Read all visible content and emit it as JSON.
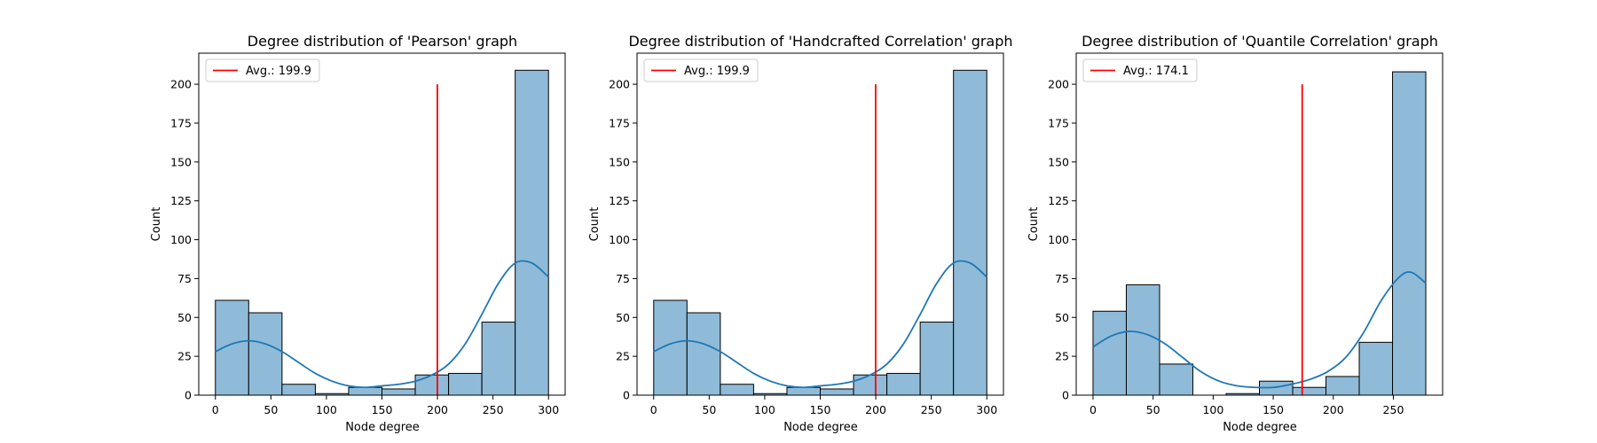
{
  "chart_data": [
    {
      "type": "bar",
      "title": "Degree distribution of 'Pearson' graph",
      "xlabel": "Node degree",
      "ylabel": "Count",
      "xlim": [
        -15,
        315
      ],
      "ylim": [
        0,
        220
      ],
      "xticks": [
        0,
        50,
        100,
        150,
        200,
        250,
        300
      ],
      "yticks": [
        0,
        25,
        50,
        75,
        100,
        125,
        150,
        175,
        200
      ],
      "bin_edges": [
        0,
        30,
        60,
        90,
        120,
        150,
        180,
        210,
        240,
        270,
        300
      ],
      "values": [
        61,
        53,
        7,
        1,
        5,
        4,
        13,
        14,
        47,
        209
      ],
      "kde": {
        "x": [
          0,
          15,
          30,
          45,
          60,
          75,
          90,
          105,
          120,
          135,
          150,
          165,
          180,
          195,
          210,
          225,
          240,
          255,
          270,
          285,
          300
        ],
        "y": [
          28,
          33,
          35,
          33,
          28,
          21,
          14,
          9,
          6,
          5,
          6,
          7,
          9,
          13,
          20,
          33,
          52,
          72,
          85,
          85,
          76
        ]
      },
      "avg": {
        "value": 199.9,
        "line_top": 200,
        "color": "#ff0000",
        "label": "Avg.: 199.9"
      },
      "legend_position": "top-left"
    },
    {
      "type": "bar",
      "title": "Degree distribution of 'Handcrafted Correlation' graph",
      "xlabel": "Node degree",
      "ylabel": "Count",
      "xlim": [
        -15,
        315
      ],
      "ylim": [
        0,
        220
      ],
      "xticks": [
        0,
        50,
        100,
        150,
        200,
        250,
        300
      ],
      "yticks": [
        0,
        25,
        50,
        75,
        100,
        125,
        150,
        175,
        200
      ],
      "bin_edges": [
        0,
        30,
        60,
        90,
        120,
        150,
        180,
        210,
        240,
        270,
        300
      ],
      "values": [
        61,
        53,
        7,
        1,
        5,
        4,
        13,
        14,
        47,
        209
      ],
      "kde": {
        "x": [
          0,
          15,
          30,
          45,
          60,
          75,
          90,
          105,
          120,
          135,
          150,
          165,
          180,
          195,
          210,
          225,
          240,
          255,
          270,
          285,
          300
        ],
        "y": [
          28,
          33,
          35,
          33,
          28,
          21,
          14,
          9,
          6,
          5,
          6,
          7,
          9,
          13,
          20,
          33,
          52,
          72,
          85,
          85,
          76
        ]
      },
      "avg": {
        "value": 199.9,
        "line_top": 200,
        "color": "#ff0000",
        "label": "Avg.: 199.9"
      },
      "legend_position": "top-left"
    },
    {
      "type": "bar",
      "title": "Degree distribution of 'Quantile Correlation' graph",
      "xlabel": "Node degree",
      "ylabel": "Count",
      "xlim": [
        -14,
        291
      ],
      "ylim": [
        0,
        220
      ],
      "xticks": [
        0,
        50,
        100,
        150,
        200,
        250
      ],
      "yticks": [
        0,
        25,
        50,
        75,
        100,
        125,
        150,
        175,
        200
      ],
      "bin_edges": [
        0,
        27.7,
        55.4,
        83.1,
        110.8,
        138.5,
        166.2,
        193.9,
        221.6,
        249.3,
        277
      ],
      "values": [
        54,
        71,
        20,
        0,
        1,
        9,
        5,
        12,
        34,
        208
      ],
      "kde": {
        "x": [
          0,
          15,
          30,
          45,
          60,
          75,
          90,
          105,
          120,
          135,
          150,
          165,
          180,
          195,
          210,
          225,
          240,
          255,
          265,
          277
        ],
        "y": [
          31,
          38,
          41,
          39,
          33,
          24,
          15,
          9,
          6,
          5,
          5,
          7,
          10,
          15,
          24,
          40,
          61,
          76,
          79,
          72
        ]
      },
      "avg": {
        "value": 174.1,
        "line_top": 200,
        "color": "#ff0000",
        "label": "Avg.: 174.1"
      },
      "legend_position": "top-left"
    }
  ],
  "colors": {
    "bar_fill": "#8fbbd9",
    "bar_edge": "#000000",
    "kde_line": "#1f77b4",
    "avg_line": "#ff0000",
    "axis": "#000000"
  }
}
